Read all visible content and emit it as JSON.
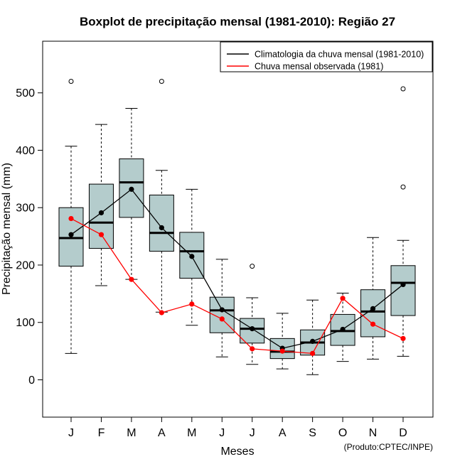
{
  "chart_data": {
    "type": "boxplot",
    "title": "Boxplot de precipitação mensal (1981-2010): Região 27",
    "xlabel": "Meses",
    "ylabel": "Precipitação mensal (mm)",
    "ylim": [
      -65,
      590
    ],
    "y_ticks": [
      0,
      100,
      200,
      300,
      400,
      500
    ],
    "categories": [
      "J",
      "F",
      "M",
      "A",
      "M",
      "J",
      "J",
      "A",
      "S",
      "O",
      "N",
      "D"
    ],
    "box_color": "#b4cccc",
    "boxes": [
      {
        "min": 46,
        "q1": 198,
        "median": 247,
        "q3": 300,
        "max": 407,
        "outliers": [
          520
        ]
      },
      {
        "min": 164,
        "q1": 229,
        "median": 274,
        "q3": 341,
        "max": 445,
        "outliers": []
      },
      {
        "min": 175,
        "q1": 283,
        "median": 344,
        "q3": 385,
        "max": 473,
        "outliers": []
      },
      {
        "min": 118,
        "q1": 224,
        "median": 256,
        "q3": 322,
        "max": 365,
        "outliers": [
          520
        ]
      },
      {
        "min": 95,
        "q1": 177,
        "median": 224,
        "q3": 257,
        "max": 332,
        "outliers": []
      },
      {
        "min": 40,
        "q1": 82,
        "median": 121,
        "q3": 144,
        "max": 210,
        "outliers": []
      },
      {
        "min": 27,
        "q1": 64,
        "median": 89,
        "q3": 107,
        "max": 143,
        "outliers": [
          198
        ]
      },
      {
        "min": 19,
        "q1": 37,
        "median": 49,
        "q3": 72,
        "max": 116,
        "outliers": []
      },
      {
        "min": 9,
        "q1": 43,
        "median": 65,
        "q3": 87,
        "max": 139,
        "outliers": []
      },
      {
        "min": 32,
        "q1": 60,
        "median": 85,
        "q3": 114,
        "max": 151,
        "outliers": []
      },
      {
        "min": 36,
        "q1": 75,
        "median": 119,
        "q3": 157,
        "max": 248,
        "outliers": []
      },
      {
        "min": 41,
        "q1": 112,
        "median": 169,
        "q3": 199,
        "max": 243,
        "outliers": [
          507,
          336
        ]
      }
    ],
    "series": [
      {
        "name": "Climatologia da chuva mensal (1981-2010)",
        "color": "#000000",
        "values": [
          253,
          291,
          332,
          265,
          215,
          122,
          89,
          55,
          67,
          88,
          124,
          166
        ]
      },
      {
        "name": "Chuva mensal observada (1981)",
        "color": "#ff0000",
        "values": [
          281,
          253,
          175,
          117,
          132,
          106,
          54,
          50,
          46,
          142,
          97,
          72
        ]
      }
    ],
    "legend_position": "top-right",
    "credit": "(Produto:CPTEC/INPE)"
  }
}
